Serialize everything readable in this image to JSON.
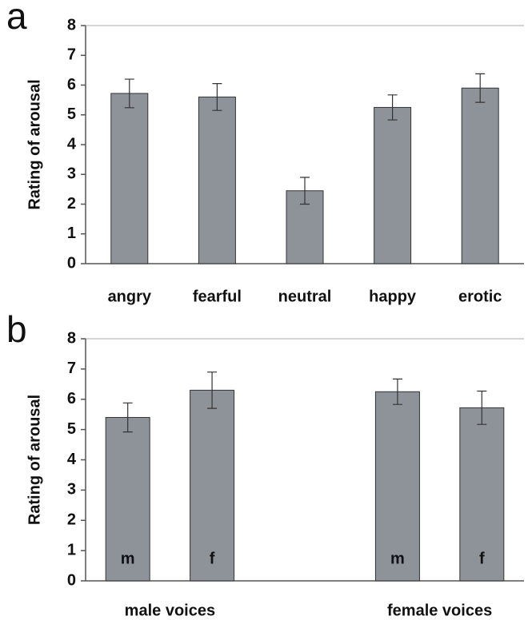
{
  "chart_data": [
    {
      "type": "bar",
      "panel_label": "a",
      "ylabel": "Rating of arousal",
      "categories": [
        "angry",
        "fearful",
        "neutral",
        "happy",
        "erotic"
      ],
      "values": [
        5.72,
        5.6,
        2.45,
        5.25,
        5.9
      ],
      "errors": [
        0.48,
        0.45,
        0.45,
        0.42,
        0.48
      ],
      "color": "#8e9299",
      "ylim": [
        0,
        8
      ],
      "yticks": [
        0,
        1,
        2,
        3,
        4,
        5,
        6,
        7,
        8
      ]
    },
    {
      "type": "bar",
      "panel_label": "b",
      "ylabel": "Rating of arousal",
      "categories": [
        "m",
        "f",
        "m",
        "f"
      ],
      "groups": [
        "male voices",
        "female voices"
      ],
      "values": [
        5.4,
        6.3,
        6.25,
        5.72
      ],
      "errors": [
        0.48,
        0.6,
        0.42,
        0.55
      ],
      "color": "#8e9299",
      "ylim": [
        0,
        8
      ],
      "yticks": [
        0,
        1,
        2,
        3,
        4,
        5,
        6,
        7,
        8
      ]
    }
  ]
}
